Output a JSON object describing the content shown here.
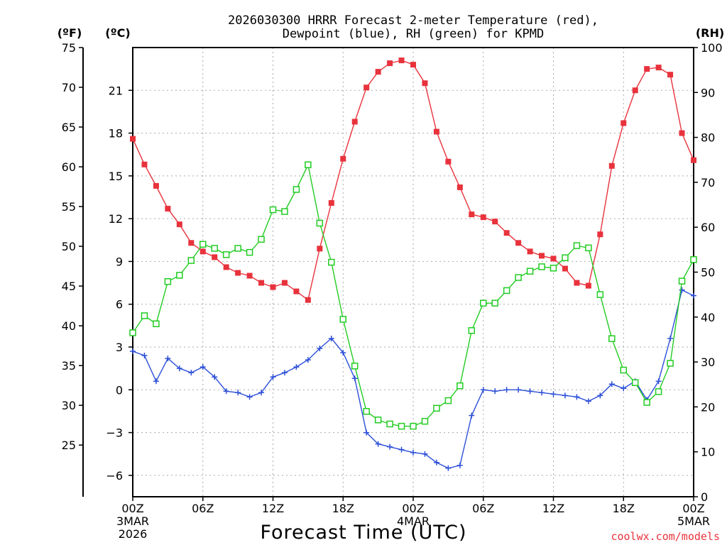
{
  "chart_data": {
    "type": "line",
    "title_line1": "2026030300 HRRR Forecast 2-meter Temperature (red),",
    "title_line2": "Dewpoint (blue), RH (green) for KPMD",
    "xlabel": "Forecast Time (UTC)",
    "credit": "coolwx.com/models",
    "unit_f": "(ºF)",
    "unit_c": "(ºC)",
    "unit_rh": "(RH)",
    "x_range": [
      0,
      48
    ],
    "y_range_c": [
      -7.5,
      24
    ],
    "y_range_f": [
      18.5,
      75
    ],
    "rh_range": [
      0,
      100
    ],
    "grid": true,
    "x_ticks": [
      {
        "x": 0,
        "label": "00Z",
        "sub1": "3MAR",
        "sub2": "2026"
      },
      {
        "x": 6,
        "label": "06Z",
        "sub1": "",
        "sub2": ""
      },
      {
        "x": 12,
        "label": "12Z",
        "sub1": "",
        "sub2": ""
      },
      {
        "x": 18,
        "label": "18Z",
        "sub1": "",
        "sub2": ""
      },
      {
        "x": 24,
        "label": "00Z",
        "sub1": "4MAR",
        "sub2": ""
      },
      {
        "x": 30,
        "label": "06Z",
        "sub1": "",
        "sub2": ""
      },
      {
        "x": 36,
        "label": "12Z",
        "sub1": "",
        "sub2": ""
      },
      {
        "x": 42,
        "label": "18Z",
        "sub1": "",
        "sub2": ""
      },
      {
        "x": 48,
        "label": "00Z",
        "sub1": "5MAR",
        "sub2": ""
      }
    ],
    "y_ticks_c": [
      -6,
      -3,
      0,
      3,
      6,
      9,
      12,
      15,
      18,
      21
    ],
    "y_ticks_f": [
      25,
      30,
      35,
      40,
      45,
      50,
      55,
      60,
      65,
      70,
      75
    ],
    "y_ticks_rh": [
      0,
      10,
      20,
      30,
      40,
      50,
      60,
      70,
      80,
      90,
      100
    ],
    "series": [
      {
        "name": "Temperature",
        "axis": "c",
        "color": "#e8323c",
        "marker": "filled-square",
        "x": [
          0,
          1,
          2,
          3,
          4,
          5,
          6,
          7,
          8,
          9,
          10,
          11,
          12,
          13,
          14,
          15,
          16,
          17,
          18,
          19,
          20,
          21,
          22,
          23,
          24,
          25,
          26,
          27,
          28,
          29,
          30,
          31,
          32,
          33,
          34,
          35,
          36,
          37,
          38,
          39,
          40,
          41,
          42,
          43,
          44,
          45,
          46,
          47,
          48
        ],
        "values": [
          17.6,
          15.8,
          14.3,
          12.7,
          11.6,
          10.3,
          9.7,
          9.3,
          8.6,
          8.2,
          8.0,
          7.5,
          7.2,
          7.5,
          6.9,
          6.3,
          9.9,
          13.1,
          16.2,
          18.8,
          21.2,
          22.3,
          22.9,
          23.1,
          22.8,
          21.5,
          18.1,
          16.0,
          14.2,
          12.3,
          12.1,
          11.8,
          11.0,
          10.3,
          9.7,
          9.4,
          9.2,
          8.5,
          7.5,
          7.3,
          10.9,
          15.7,
          18.7,
          21.0,
          22.5,
          22.6,
          22.1,
          18.0,
          16.1
        ]
      },
      {
        "name": "Dewpoint",
        "axis": "c",
        "color": "#2c4fd8",
        "marker": "plus",
        "x": [
          0,
          1,
          2,
          3,
          4,
          5,
          6,
          7,
          8,
          9,
          10,
          11,
          12,
          13,
          14,
          15,
          16,
          17,
          18,
          19,
          20,
          21,
          22,
          23,
          24,
          25,
          26,
          27,
          28,
          29,
          30,
          31,
          32,
          33,
          34,
          35,
          36,
          37,
          38,
          39,
          40,
          41,
          42,
          43,
          44,
          45,
          46,
          47,
          48
        ],
        "values": [
          2.7,
          2.4,
          0.6,
          2.2,
          1.5,
          1.2,
          1.6,
          0.9,
          -0.1,
          -0.2,
          -0.5,
          -0.2,
          0.9,
          1.2,
          1.6,
          2.1,
          2.9,
          3.6,
          2.6,
          0.8,
          -3.0,
          -3.8,
          -4.0,
          -4.2,
          -4.4,
          -4.5,
          -5.1,
          -5.5,
          -5.3,
          -1.8,
          0.0,
          -0.1,
          0.0,
          0.0,
          -0.1,
          -0.2,
          -0.3,
          -0.4,
          -0.5,
          -0.8,
          -0.4,
          0.4,
          0.1,
          0.6,
          -0.7,
          0.6,
          3.6,
          7.0,
          6.6
        ]
      },
      {
        "name": "RH",
        "axis": "rh",
        "color": "#22cc22",
        "marker": "open-square",
        "x": [
          0,
          1,
          2,
          3,
          4,
          5,
          6,
          7,
          8,
          9,
          10,
          11,
          12,
          13,
          14,
          15,
          16,
          17,
          18,
          19,
          20,
          21,
          22,
          23,
          24,
          25,
          26,
          27,
          28,
          29,
          30,
          31,
          32,
          33,
          34,
          35,
          36,
          37,
          38,
          39,
          40,
          41,
          42,
          43,
          44,
          45,
          46,
          47,
          48
        ],
        "values": [
          36.5,
          40.3,
          38.5,
          47.9,
          49.3,
          52.6,
          56.2,
          55.3,
          53.9,
          55.3,
          54.4,
          57.3,
          63.9,
          63.5,
          68.4,
          73.9,
          60.9,
          52.2,
          39.5,
          29.1,
          19.0,
          17.1,
          16.2,
          15.7,
          15.7,
          16.8,
          19.7,
          21.4,
          24.7,
          37.0,
          43.1,
          43.1,
          45.9,
          48.8,
          50.2,
          51.2,
          50.9,
          53.2,
          55.9,
          55.4,
          45.0,
          35.2,
          28.2,
          25.4,
          21.0,
          23.4,
          29.7,
          48.0,
          52.8
        ]
      }
    ]
  }
}
